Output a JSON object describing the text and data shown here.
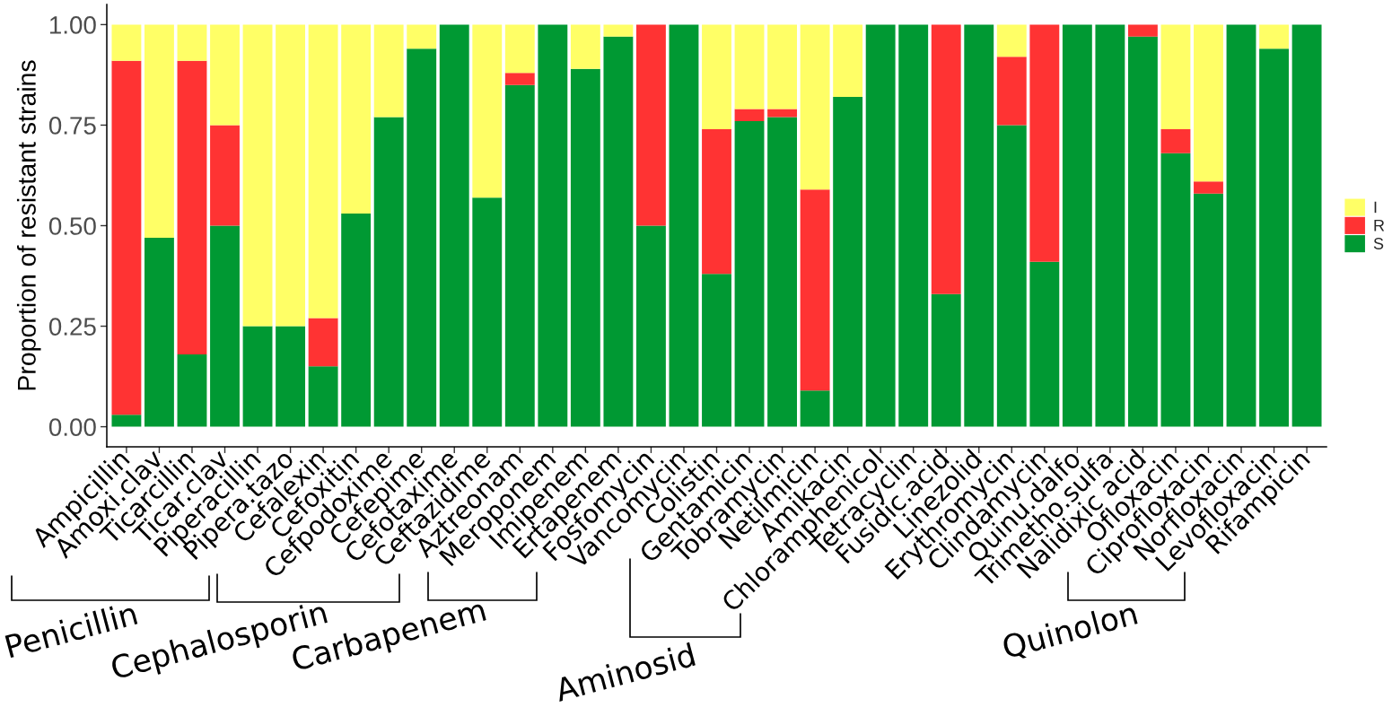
{
  "chart_data": {
    "type": "bar",
    "stacked": true,
    "ylabel": "Proportion of resistant strains",
    "categories": [
      "Ampicillin",
      "Amoxi.clav",
      "Ticarcillin",
      "Ticar.clav",
      "Piperacillin",
      "Pipera.tazo",
      "Cefalexin",
      "Cefoxitin",
      "Cefpodoxime",
      "Cefepime",
      "Cefotaxime",
      "Ceftazidime",
      "Aztreonam",
      "Meroponem",
      "Imipenem",
      "Ertapenem",
      "Fosfomycin",
      "Vancomycin",
      "Colistin",
      "Gentamicin",
      "Tobramycin",
      "Netilmicin",
      "Amikacin",
      "Chloramphenicol",
      "Tetracyclin",
      "Fusidic.acid",
      "Linezolid",
      "Erythromycin",
      "Clindamycin",
      "Quinu.dalfo",
      "Trimetho.sulfa",
      "Nalidixic acid",
      "Ofloxacin",
      "Ciprofloxacin",
      "Norfloxacin",
      "Levofloxacin",
      "Rifampicin"
    ],
    "series": [
      {
        "name": "S",
        "color": "#009933",
        "values": [
          0.03,
          0.47,
          0.18,
          0.5,
          0.25,
          0.25,
          0.15,
          0.53,
          0.77,
          0.94,
          1,
          0.57,
          0.85,
          1,
          0.89,
          0.97,
          0.5,
          1,
          0.38,
          0.76,
          0.77,
          0.09,
          0.82,
          1,
          1,
          0.33,
          1,
          0.75,
          0.41,
          1,
          1,
          0.97,
          0.68,
          0.58,
          1,
          0.94,
          1
        ]
      },
      {
        "name": "R",
        "color": "#ff3333",
        "values": [
          0.88,
          0,
          0.73,
          0.25,
          0,
          0,
          0.12,
          0,
          0,
          0,
          0,
          0,
          0.03,
          0,
          0,
          0,
          0.5,
          0,
          0.36,
          0.03,
          0.02,
          0.5,
          0,
          0,
          0,
          0.67,
          0,
          0.17,
          0.59,
          0,
          0,
          0.03,
          0.06,
          0.03,
          0,
          0,
          0
        ]
      },
      {
        "name": "I",
        "color": "#ffff66",
        "values": [
          0.09,
          0.53,
          0.09,
          0.25,
          0.75,
          0.75,
          0.73,
          0.47,
          0.23,
          0.06,
          0,
          0.43,
          0.12,
          0,
          0.11,
          0.03,
          0,
          0,
          0.26,
          0.21,
          0.21,
          0.41,
          0.18,
          0,
          0,
          0,
          0,
          0.08,
          0,
          0,
          0,
          0,
          0.26,
          0.39,
          0,
          0.06,
          0
        ]
      }
    ],
    "ylim": [
      -0.05,
      1.05
    ],
    "yticks": [
      {
        "value": 0,
        "label": "0.00"
      },
      {
        "value": 0.25,
        "label": "0.25"
      },
      {
        "value": 0.5,
        "label": "0.50"
      },
      {
        "value": 0.75,
        "label": "0.75"
      },
      {
        "value": 1,
        "label": "1.00"
      }
    ],
    "legend": "right",
    "annotations": [
      "Penicillin",
      "Cephalosporin",
      "Carbapenem",
      "Aminosid",
      "Quinolon"
    ]
  }
}
